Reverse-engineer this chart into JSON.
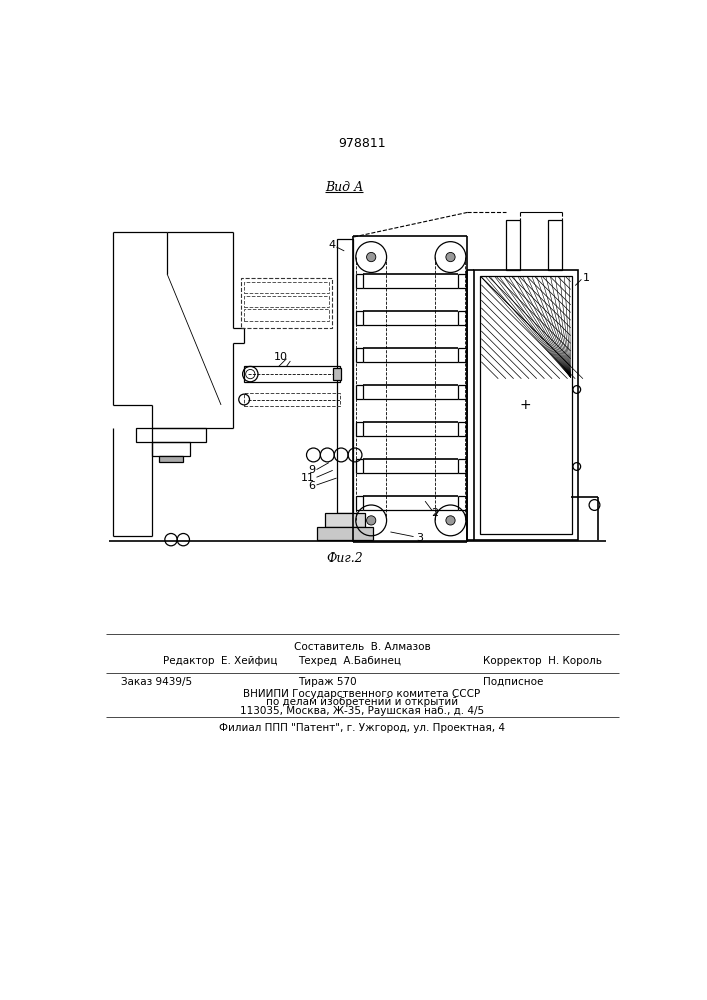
{
  "patent_number": "978811",
  "view_label": "Вид А",
  "fig_label": "Фиг.2",
  "bg_color": "#ffffff",
  "line_color": "#000000",
  "footer": {
    "editor": "Редактор  Е. Хейфиц",
    "composer": "Составитель  В. Алмазов",
    "techred": "Техред  А.Бабинец",
    "corrector": "Корректор  Н. Король",
    "order": "Заказ 9439/5",
    "tirage": "Тираж 570",
    "subscription": "Подписное",
    "org1": "ВНИИПИ Государственного комитета СССР",
    "org2": "по делам изобретений и открытий",
    "org3": "113035, Москва, Ж-35, Раушская наб., д. 4/5",
    "branch": "Филиал ППП \"Патент\", г. Ужгород, ул. Проектная, 4"
  }
}
